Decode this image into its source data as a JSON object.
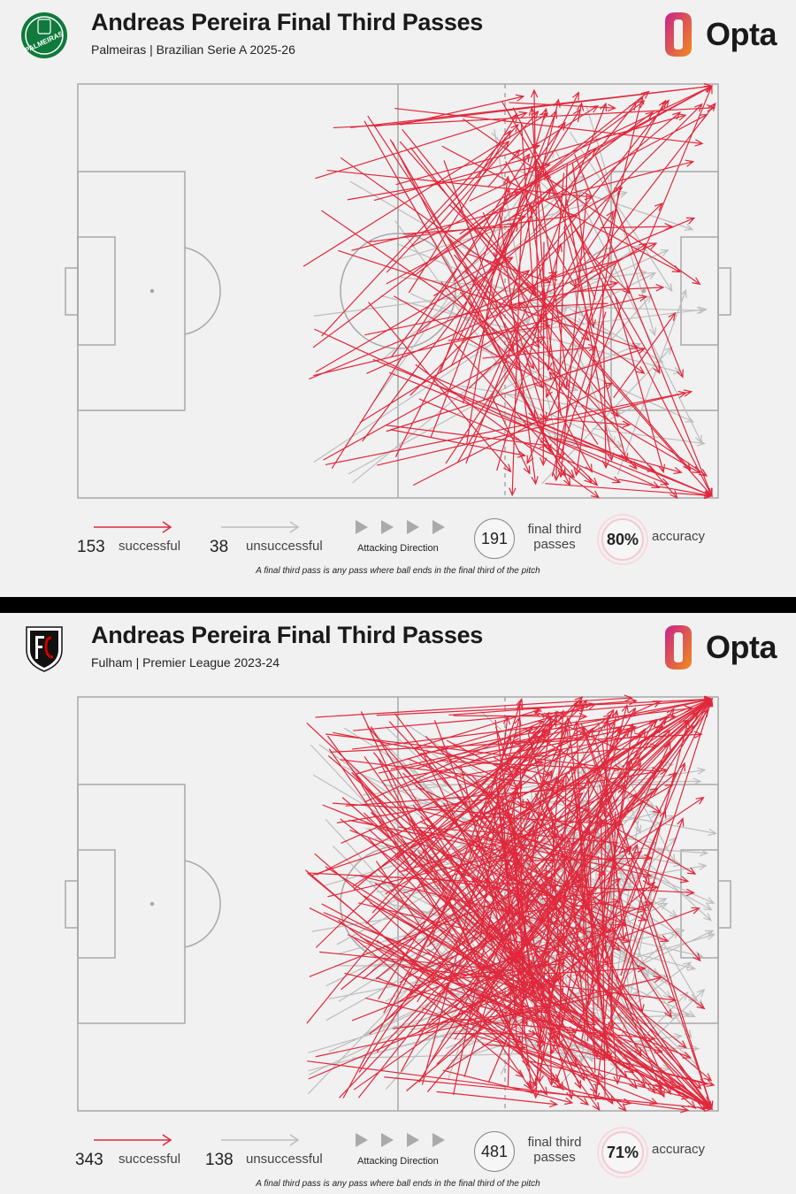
{
  "panels": [
    {
      "title": "Andreas Pereira Final Third Passes",
      "subtitle": "Palmeiras | Brazilian Serie A 2025-26",
      "brand": "Opta",
      "crest_icon": "palmeiras-crest-icon",
      "crest_text": "PALMEIRAS",
      "legend": {
        "successful_count": "153",
        "successful_label": "successful",
        "unsuccessful_count": "38",
        "unsuccessful_label": "unsuccessful",
        "attacking_direction_label": "Attacking Direction",
        "total": "191",
        "total_label_1": "final third",
        "total_label_2": "passes",
        "accuracy": "80%",
        "accuracy_label": "accuracy",
        "footnote": "A final third pass is any pass where ball ends in the final third of the pitch"
      }
    },
    {
      "title": "Andreas Pereira Final Third Passes",
      "subtitle": "Fulham | Premier League 2023-24",
      "brand": "Opta",
      "crest_icon": "fulham-crest-icon",
      "crest_text": "",
      "legend": {
        "successful_count": "343",
        "successful_label": "successful",
        "unsuccessful_count": "138",
        "unsuccessful_label": "unsuccessful",
        "attacking_direction_label": "Attacking Direction",
        "total": "481",
        "total_label_1": "final third",
        "total_label_2": "passes",
        "accuracy": "71%",
        "accuracy_label": "accuracy",
        "footnote": "A final third pass is any pass where ball ends in the final third of the pitch"
      }
    }
  ],
  "colors": {
    "successful": "#e0283c",
    "unsuccessful": "#bdbdbd",
    "pitch_lines": "#a8a8a8",
    "background": "#f1f1f1",
    "palmeiras_green": "#0f7a3b",
    "opta_orange": "#f28c1c",
    "opta_magenta": "#c8238a"
  },
  "chart_data": [
    {
      "type": "scatter",
      "pitch_units": "0-100 length, 0-100 width",
      "attacking_direction": "right",
      "successful": 153,
      "unsuccessful": 38,
      "total": 191,
      "accuracy_pct": 80
    },
    {
      "type": "scatter",
      "pitch_units": "0-100 length, 0-100 width",
      "attacking_direction": "right",
      "successful": 343,
      "unsuccessful": 138,
      "total": 481,
      "accuracy_pct": 71
    }
  ]
}
